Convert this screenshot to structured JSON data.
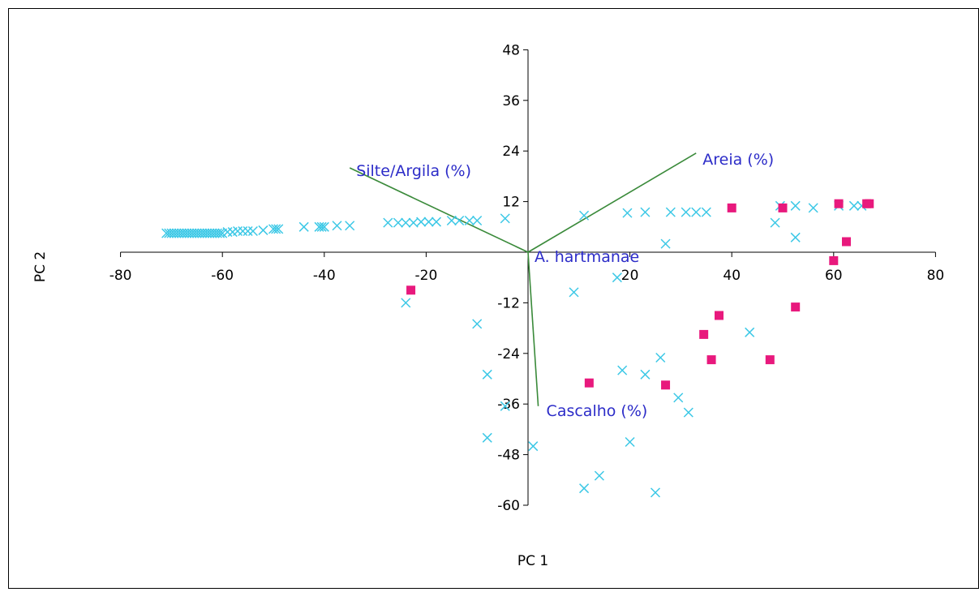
{
  "chart_data": {
    "type": "scatter",
    "title": "",
    "xlabel": "PC 1",
    "ylabel": "PC 2",
    "xlim": [
      -80,
      80
    ],
    "ylim": [
      -60,
      48
    ],
    "xticks": [
      -80,
      -60,
      -40,
      -20,
      20,
      40,
      60,
      80
    ],
    "yticks": [
      48,
      36,
      24,
      12,
      -12,
      -24,
      -36,
      -48,
      -60
    ],
    "grid": false,
    "colors": {
      "cross": "#3cc8e6",
      "square": "#e8197d",
      "vector": "#3a8a3a",
      "vector_label": "#2c2cc8",
      "axis": "#000000"
    },
    "vectors": [
      {
        "label": "Silte/Argila (%)",
        "x": -35,
        "y": 20
      },
      {
        "label": "Areia (%)",
        "x": 33,
        "y": 23.5
      },
      {
        "label": "Cascalho (%)",
        "x": 2,
        "y": -36.5
      },
      {
        "label": "A. hartmanae",
        "x": 0,
        "y": 0
      }
    ],
    "series": [
      {
        "marker": "cross",
        "points": [
          [
            -71,
            4.5
          ],
          [
            -70.5,
            4.5
          ],
          [
            -70,
            4.5
          ],
          [
            -69.5,
            4.5
          ],
          [
            -69,
            4.5
          ],
          [
            -68.5,
            4.5
          ],
          [
            -68,
            4.5
          ],
          [
            -67.5,
            4.5
          ],
          [
            -67,
            4.5
          ],
          [
            -66.5,
            4.5
          ],
          [
            -66,
            4.5
          ],
          [
            -65.5,
            4.5
          ],
          [
            -65,
            4.5
          ],
          [
            -64.5,
            4.5
          ],
          [
            -64,
            4.5
          ],
          [
            -63.5,
            4.5
          ],
          [
            -63,
            4.5
          ],
          [
            -62.5,
            4.5
          ],
          [
            -62,
            4.5
          ],
          [
            -61.5,
            4.5
          ],
          [
            -61,
            4.5
          ],
          [
            -60.5,
            4.5
          ],
          [
            -60,
            4.5
          ],
          [
            -59,
            4.8
          ],
          [
            -58,
            4.8
          ],
          [
            -57,
            5
          ],
          [
            -56,
            5
          ],
          [
            -55,
            5
          ],
          [
            -54,
            5
          ],
          [
            -52,
            5.2
          ],
          [
            -50,
            5.5
          ],
          [
            -49.5,
            5.5
          ],
          [
            -49,
            5.5
          ],
          [
            -44,
            6
          ],
          [
            -41,
            6
          ],
          [
            -40.5,
            6
          ],
          [
            -40,
            6
          ],
          [
            -37.5,
            6.3
          ],
          [
            -35,
            6.3
          ],
          [
            -27.5,
            7
          ],
          [
            -25.5,
            7
          ],
          [
            -24,
            7
          ],
          [
            -22.5,
            7
          ],
          [
            -21,
            7.2
          ],
          [
            -19.5,
            7.2
          ],
          [
            -18,
            7.2
          ],
          [
            -15,
            7.5
          ],
          [
            -13.5,
            7.5
          ],
          [
            -11.5,
            7.5
          ],
          [
            -10,
            7.5
          ],
          [
            -4.5,
            8
          ],
          [
            11,
            8.7
          ],
          [
            19.5,
            9.3
          ],
          [
            23,
            9.5
          ],
          [
            28,
            9.5
          ],
          [
            31,
            9.5
          ],
          [
            33,
            9.5
          ],
          [
            35,
            9.5
          ],
          [
            48.5,
            7
          ],
          [
            49.5,
            11
          ],
          [
            52.5,
            11
          ],
          [
            56,
            10.5
          ],
          [
            61,
            11
          ],
          [
            64,
            11
          ],
          [
            65.5,
            11
          ],
          [
            52.5,
            3.5
          ],
          [
            27,
            2
          ],
          [
            -24,
            -12
          ],
          [
            -10,
            -17
          ],
          [
            -8,
            -29
          ],
          [
            -8,
            -44
          ],
          [
            -4.5,
            -36.5
          ],
          [
            1,
            -46
          ],
          [
            9,
            -9.5
          ],
          [
            17.5,
            -6
          ],
          [
            11,
            -56
          ],
          [
            14,
            -53
          ],
          [
            18.5,
            -28
          ],
          [
            20,
            -45
          ],
          [
            23,
            -29
          ],
          [
            26,
            -25
          ],
          [
            25,
            -57
          ],
          [
            29.5,
            -34.5
          ],
          [
            31.5,
            -38
          ],
          [
            43.5,
            -19
          ]
        ]
      },
      {
        "marker": "square",
        "points": [
          [
            -23,
            -9
          ],
          [
            12,
            -31
          ],
          [
            27,
            -31.5
          ],
          [
            34.5,
            -19.5
          ],
          [
            36,
            -25.5
          ],
          [
            37.5,
            -15
          ],
          [
            40,
            10.5
          ],
          [
            47.5,
            -25.5
          ],
          [
            50,
            10.5
          ],
          [
            52.5,
            -13
          ],
          [
            60,
            -2
          ],
          [
            61,
            11.5
          ],
          [
            62.5,
            2.5
          ],
          [
            66.5,
            11.5
          ],
          [
            67,
            11.5
          ]
        ]
      }
    ]
  }
}
